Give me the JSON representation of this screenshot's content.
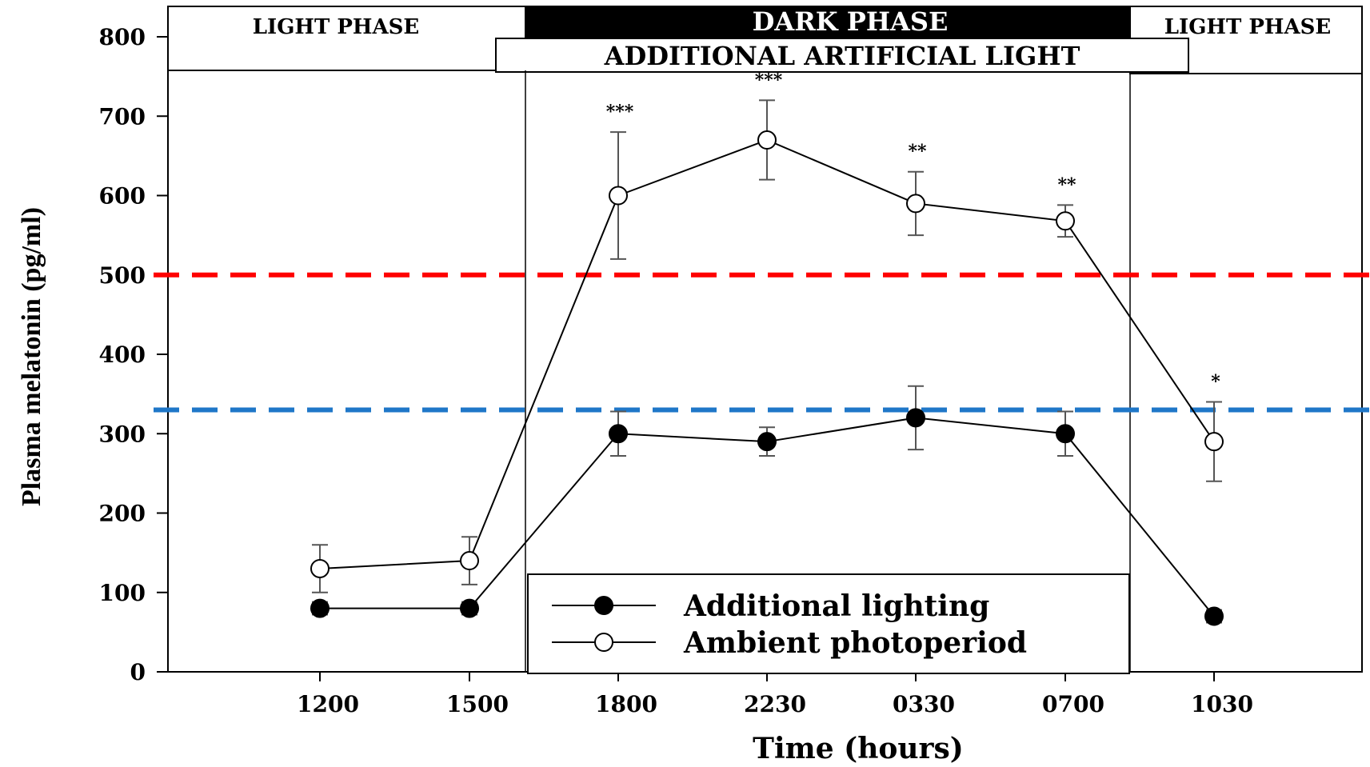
{
  "chart_data": {
    "type": "line",
    "categories": [
      "1200",
      "1500",
      "1800",
      "2230",
      "0330",
      "0700",
      "1030"
    ],
    "xlabel": "Time (hours)",
    "ylabel": "Plasma melatonin (pg/ml)",
    "ylim": [
      0,
      800
    ],
    "yticks": [
      "0",
      "100",
      "200",
      "300",
      "400",
      "500",
      "600",
      "700",
      "800"
    ],
    "grid": false,
    "legend_position": "bottom-center",
    "series": [
      {
        "name": "Additional lighting",
        "marker": "filled-circle",
        "values": [
          80,
          80,
          300,
          290,
          320,
          300,
          70
        ],
        "error": [
          8,
          8,
          28,
          18,
          40,
          28,
          8
        ],
        "start_index": 0,
        "point_indices": [
          0,
          1,
          2,
          3,
          4,
          5,
          6
        ]
      },
      {
        "name": "Ambient photoperiod",
        "marker": "open-circle",
        "values": [
          130,
          140,
          600,
          670,
          590,
          568,
          290
        ],
        "error": [
          30,
          30,
          80,
          50,
          40,
          20,
          50
        ],
        "point_indices": [
          0,
          1,
          2,
          3,
          4,
          5,
          6
        ]
      }
    ],
    "significance": [
      {
        "index": 2,
        "label": "***"
      },
      {
        "index": 3,
        "label": "***"
      },
      {
        "index": 4,
        "label": "**"
      },
      {
        "index": 5,
        "label": "**"
      },
      {
        "index": 6,
        "label": "*"
      }
    ],
    "reference_lines": [
      {
        "value": 500,
        "color": "#ff0000",
        "style": "dashed"
      },
      {
        "value": 330,
        "color": "#1f77c8",
        "style": "dashed"
      }
    ],
    "phases": {
      "light_left": "LIGHT PHASE",
      "dark": "DARK PHASE",
      "light_right": "LIGHT PHASE",
      "artificial": "ADDITIONAL ARTIFICIAL LIGHT"
    }
  }
}
